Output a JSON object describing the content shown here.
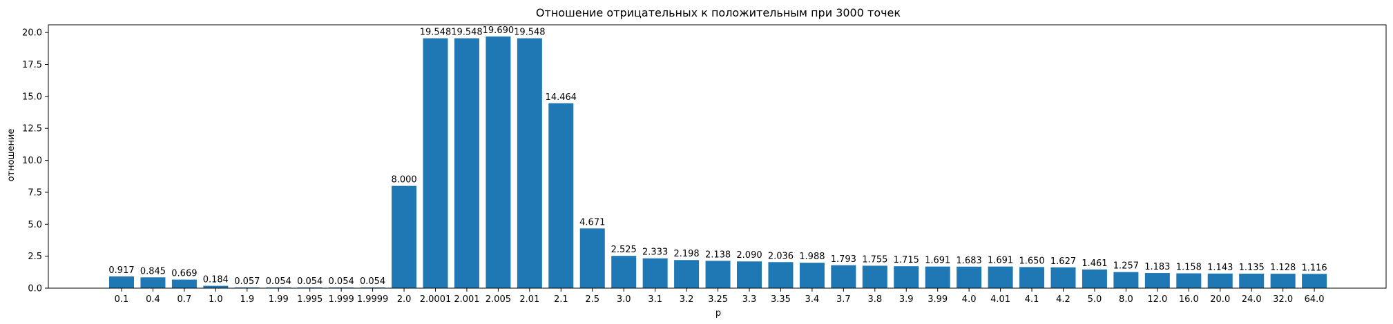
{
  "chart_data": {
    "type": "bar",
    "title": "Отношение отрицательных к положительным при 3000 точек",
    "xlabel": "p",
    "ylabel": "отношение",
    "ylim": [
      0,
      20.6
    ],
    "yticks": [
      "0.0",
      "2.5",
      "5.0",
      "7.5",
      "10.0",
      "12.5",
      "15.0",
      "17.5",
      "20.0"
    ],
    "grid": false,
    "bar_color": "#1f77b4",
    "categories": [
      "0.1",
      "0.4",
      "0.7",
      "1.0",
      "1.9",
      "1.99",
      "1.995",
      "1.999",
      "1.9999",
      "2.0",
      "2.0001",
      "2.001",
      "2.005",
      "2.01",
      "2.1",
      "2.5",
      "3.0",
      "3.1",
      "3.2",
      "3.25",
      "3.3",
      "3.35",
      "3.4",
      "3.7",
      "3.8",
      "3.9",
      "3.99",
      "4.0",
      "4.01",
      "4.1",
      "4.2",
      "5.0",
      "8.0",
      "12.0",
      "16.0",
      "20.0",
      "24.0",
      "32.0",
      "64.0"
    ],
    "values": [
      0.917,
      0.845,
      0.669,
      0.184,
      0.057,
      0.054,
      0.054,
      0.054,
      0.054,
      8.0,
      19.548,
      19.548,
      19.69,
      19.548,
      14.464,
      4.671,
      2.525,
      2.333,
      2.198,
      2.138,
      2.09,
      2.036,
      1.988,
      1.793,
      1.755,
      1.715,
      1.691,
      1.683,
      1.691,
      1.65,
      1.627,
      1.461,
      1.257,
      1.183,
      1.158,
      1.143,
      1.135,
      1.128,
      1.116
    ],
    "data_labels": [
      "0.917",
      "0.845",
      "0.669",
      "0.184",
      "0.057",
      "0.054",
      "0.054",
      "0.054",
      "0.054",
      "8.000",
      "19.548",
      "19.548",
      "19.690",
      "19.548",
      "14.464",
      "4.671",
      "2.525",
      "2.333",
      "2.198",
      "2.138",
      "2.090",
      "2.036",
      "1.988",
      "1.793",
      "1.755",
      "1.715",
      "1.691",
      "1.683",
      "1.691",
      "1.650",
      "1.627",
      "1.461",
      "1.257",
      "1.183",
      "1.158",
      "1.143",
      "1.135",
      "1.128",
      "1.116"
    ]
  }
}
